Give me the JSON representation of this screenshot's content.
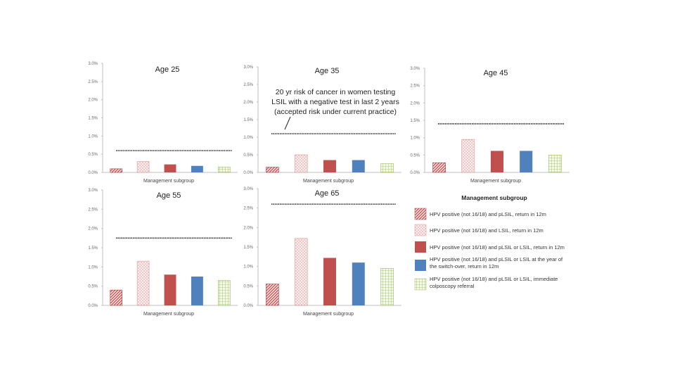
{
  "colors": {
    "s1": "#b04040",
    "s2": "#d89090",
    "s3": "#c0504d",
    "s4": "#4f81bd",
    "s5": "#9bbb59",
    "threshold": "#222222",
    "axis": "#bfbfbf"
  },
  "chart_data": [
    {
      "type": "bar",
      "title": "Age 25",
      "xlabel": "Management subgroup",
      "ylim": [
        0,
        3
      ],
      "yticks": [
        "0.0%",
        "0.5%",
        "1.0%",
        "1.5%",
        "2.0%",
        "2.5%",
        "3.0%"
      ],
      "values": [
        0.1,
        0.3,
        0.22,
        0.18,
        0.15
      ],
      "threshold": 0.6
    },
    {
      "type": "bar",
      "title": "Age 35",
      "xlabel": "Management subgroup",
      "ylim": [
        0,
        3
      ],
      "yticks": [
        "0.0%",
        "0.5%",
        "1.0%",
        "1.5%",
        "2.0%",
        "2.5%",
        "3.0%"
      ],
      "values": [
        0.15,
        0.5,
        0.35,
        0.35,
        0.25
      ],
      "threshold": 1.1
    },
    {
      "type": "bar",
      "title": "Age 45",
      "xlabel": "Management subgroup",
      "ylim": [
        0,
        3
      ],
      "yticks": [
        "0.0%",
        "0.5%",
        "1.0%",
        "1.5%",
        "2.0%",
        "2.5%",
        "3.0%"
      ],
      "values": [
        0.28,
        0.95,
        0.62,
        0.62,
        0.5
      ],
      "threshold": 1.4
    },
    {
      "type": "bar",
      "title": "Age 55",
      "xlabel": "Management subgroup",
      "ylim": [
        0,
        3
      ],
      "yticks": [
        "0.0%",
        "0.5%",
        "1.0%",
        "1.5%",
        "2.0%",
        "2.5%",
        "3.0%"
      ],
      "values": [
        0.4,
        1.15,
        0.8,
        0.75,
        0.65
      ],
      "threshold": 1.75
    },
    {
      "type": "bar",
      "title": "Age 65",
      "xlabel": "Management subgroup",
      "ylim": [
        0,
        3
      ],
      "yticks": [
        "0.0%",
        "0.5%",
        "1.0%",
        "1.5%",
        "2.0%",
        "2.5%",
        "3.0%"
      ],
      "values": [
        0.55,
        1.72,
        1.22,
        1.1,
        0.95
      ],
      "threshold": 2.6
    }
  ],
  "annotation": {
    "line1": "20 yr risk of cancer in women testing",
    "line2": "LSIL with a negative test in last 2 years",
    "line3": "(accepted risk under current practice)"
  },
  "legend": {
    "title": "Management subgroup",
    "items": [
      {
        "lines": [
          "HPV positive (not 16/18) and pLSIL, return in 12m"
        ]
      },
      {
        "lines": [
          "HPV positive (not 16/18) and LSIL, return in 12m"
        ]
      },
      {
        "lines": [
          "HPV positive (not 16/18) and pLSIL or LSIL, return in 12m"
        ]
      },
      {
        "lines": [
          "HPV positive (not 16/18) and pLSIL or LSIL at the year of",
          "the switch-over, return in 12m"
        ]
      },
      {
        "lines": [
          "HPV positive (not 16/18) and pLSIL or LSIL, immediate",
          "colposcopy referral"
        ]
      }
    ]
  }
}
